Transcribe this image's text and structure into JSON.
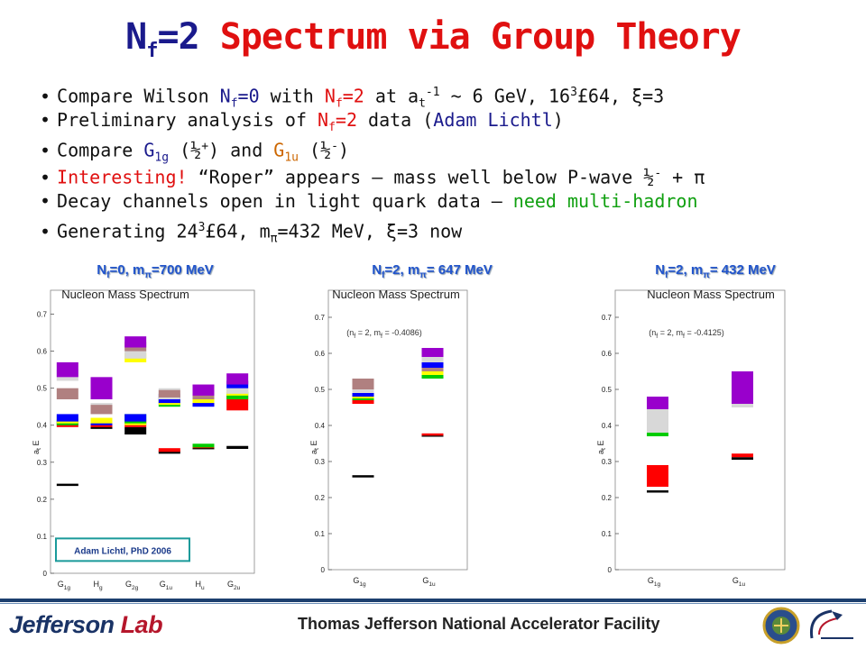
{
  "title": {
    "nf_main": "N",
    "nf_sub": "f",
    "nf_eq": "=2",
    "rest": " Spectrum via Group Theory"
  },
  "bullets": [
    {
      "parts": [
        {
          "t": "Compare Wilson "
        },
        {
          "t": "N",
          "c": "blue"
        },
        {
          "t": "f",
          "c": "blue",
          "s": "sub"
        },
        {
          "t": "=0",
          "c": "blue"
        },
        {
          "t": " with "
        },
        {
          "t": "N",
          "c": "red"
        },
        {
          "t": "f",
          "c": "red",
          "s": "sub"
        },
        {
          "t": "=2",
          "c": "red"
        },
        {
          "t": " at a"
        },
        {
          "t": "t",
          "s": "sub"
        },
        {
          "t": "-1",
          "s": "sup"
        },
        {
          "t": " ~ 6 GeV, 16"
        },
        {
          "t": "3",
          "s": "sup"
        },
        {
          "t": "£64, ξ=3"
        }
      ]
    },
    {
      "parts": [
        {
          "t": "Preliminary analysis of "
        },
        {
          "t": "N",
          "c": "red"
        },
        {
          "t": "f",
          "c": "red",
          "s": "sub"
        },
        {
          "t": "=2",
          "c": "red"
        },
        {
          "t": " data ("
        },
        {
          "t": "Adam Lichtl",
          "c": "blue"
        },
        {
          "t": ")"
        }
      ]
    },
    {
      "parts": [
        {
          "t": "Compare "
        },
        {
          "t": "G",
          "c": "blue"
        },
        {
          "t": "1g",
          "c": "blue",
          "s": "sub"
        },
        {
          "t": " (½"
        },
        {
          "t": "+",
          "s": "sup"
        },
        {
          "t": ")  and "
        },
        {
          "t": "G",
          "c": "orange"
        },
        {
          "t": "1u",
          "c": "orange",
          "s": "sub"
        },
        {
          "t": " (½"
        },
        {
          "t": "-",
          "s": "sup"
        },
        {
          "t": ")"
        }
      ]
    },
    {
      "parts": [
        {
          "t": "Interesting!",
          "c": "red"
        },
        {
          "t": " “Roper” appears – mass well below P-wave ½"
        },
        {
          "t": "-",
          "s": "sup"
        },
        {
          "t": " + π"
        }
      ]
    },
    {
      "parts": [
        {
          "t": "Decay channels open in light quark data – "
        },
        {
          "t": "need multi-hadron",
          "c": "green"
        }
      ]
    },
    {
      "parts": [
        {
          "t": "Generating 24"
        },
        {
          "t": "3",
          "s": "sup"
        },
        {
          "t": "£64, m"
        },
        {
          "t": "π",
          "s": "sub"
        },
        {
          "t": "=432 MeV, ξ=3 now"
        }
      ]
    }
  ],
  "chart_data": [
    {
      "type": "bar",
      "label": "N_f=0, m_π=700 MeV",
      "label_parts": {
        "a": "N",
        "b": "f",
        "c": "=0, m",
        "d": "π",
        "e": "=700 MeV"
      },
      "title": "Nucleon Mass Spectrum",
      "ylabel": "a_t E",
      "ylim": [
        0,
        0.75
      ],
      "yticks": [
        "0",
        "0.1",
        "0.2",
        "0.3",
        "0.4",
        "0.5",
        "0.6",
        "0.7"
      ],
      "categories": [
        {
          "base": "G",
          "sub": "1g"
        },
        {
          "base": "H",
          "sub": "g"
        },
        {
          "base": "G",
          "sub": "2g"
        },
        {
          "base": "G",
          "sub": "1u"
        },
        {
          "base": "H",
          "sub": "u"
        },
        {
          "base": "G",
          "sub": "2u"
        }
      ],
      "annotation": "Adam Lichtl, PhD 2006",
      "levels": [
        {
          "cat": 0,
          "y0": 0.236,
          "y1": 0.242,
          "color": "#000000"
        },
        {
          "cat": 0,
          "y0": 0.395,
          "y1": 0.41,
          "color": "#ff0000"
        },
        {
          "cat": 0,
          "y0": 0.4,
          "y1": 0.415,
          "color": "#00cc00"
        },
        {
          "cat": 0,
          "y0": 0.405,
          "y1": 0.425,
          "color": "#ffff00"
        },
        {
          "cat": 0,
          "y0": 0.41,
          "y1": 0.43,
          "color": "#0000ff"
        },
        {
          "cat": 0,
          "y0": 0.47,
          "y1": 0.5,
          "color": "#b08080"
        },
        {
          "cat": 0,
          "y0": 0.52,
          "y1": 0.55,
          "color": "#d8d8d8"
        },
        {
          "cat": 0,
          "y0": 0.53,
          "y1": 0.57,
          "color": "#9900cc"
        },
        {
          "cat": 1,
          "y0": 0.39,
          "y1": 0.4,
          "color": "#000000"
        },
        {
          "cat": 1,
          "y0": 0.395,
          "y1": 0.405,
          "color": "#ff0000"
        },
        {
          "cat": 1,
          "y0": 0.4,
          "y1": 0.415,
          "color": "#0000ff"
        },
        {
          "cat": 1,
          "y0": 0.405,
          "y1": 0.42,
          "color": "#ffff00"
        },
        {
          "cat": 1,
          "y0": 0.43,
          "y1": 0.46,
          "color": "#d8d8d8"
        },
        {
          "cat": 1,
          "y0": 0.43,
          "y1": 0.455,
          "color": "#b08080"
        },
        {
          "cat": 1,
          "y0": 0.47,
          "y1": 0.53,
          "color": "#9900cc"
        },
        {
          "cat": 2,
          "y0": 0.375,
          "y1": 0.395,
          "color": "#000000"
        },
        {
          "cat": 2,
          "y0": 0.395,
          "y1": 0.41,
          "color": "#ff0000"
        },
        {
          "cat": 2,
          "y0": 0.4,
          "y1": 0.415,
          "color": "#ffff00"
        },
        {
          "cat": 2,
          "y0": 0.405,
          "y1": 0.43,
          "color": "#00cc00"
        },
        {
          "cat": 2,
          "y0": 0.41,
          "y1": 0.43,
          "color": "#0000ff"
        },
        {
          "cat": 2,
          "y0": 0.57,
          "y1": 0.595,
          "color": "#ffff00"
        },
        {
          "cat": 2,
          "y0": 0.58,
          "y1": 0.61,
          "color": "#d8d8d8"
        },
        {
          "cat": 2,
          "y0": 0.6,
          "y1": 0.625,
          "color": "#b08080"
        },
        {
          "cat": 2,
          "y0": 0.61,
          "y1": 0.64,
          "color": "#9900cc"
        },
        {
          "cat": 3,
          "y0": 0.323,
          "y1": 0.332,
          "color": "#000000"
        },
        {
          "cat": 3,
          "y0": 0.328,
          "y1": 0.338,
          "color": "#ff0000"
        },
        {
          "cat": 3,
          "y0": 0.45,
          "y1": 0.47,
          "color": "#00cc00"
        },
        {
          "cat": 3,
          "y0": 0.455,
          "y1": 0.48,
          "color": "#ffff00"
        },
        {
          "cat": 3,
          "y0": 0.46,
          "y1": 0.485,
          "color": "#0000ff"
        },
        {
          "cat": 3,
          "y0": 0.47,
          "y1": 0.5,
          "color": "#d8d8d8"
        },
        {
          "cat": 3,
          "y0": 0.475,
          "y1": 0.495,
          "color": "#b08080"
        },
        {
          "cat": 4,
          "y0": 0.335,
          "y1": 0.343,
          "color": "#000000"
        },
        {
          "cat": 4,
          "y0": 0.338,
          "y1": 0.347,
          "color": "#ff0000"
        },
        {
          "cat": 4,
          "y0": 0.34,
          "y1": 0.35,
          "color": "#00cc00"
        },
        {
          "cat": 4,
          "y0": 0.45,
          "y1": 0.48,
          "color": "#0000ff"
        },
        {
          "cat": 4,
          "y0": 0.46,
          "y1": 0.485,
          "color": "#ffff00"
        },
        {
          "cat": 4,
          "y0": 0.47,
          "y1": 0.5,
          "color": "#b08080"
        },
        {
          "cat": 4,
          "y0": 0.48,
          "y1": 0.51,
          "color": "#9900cc"
        },
        {
          "cat": 5,
          "y0": 0.336,
          "y1": 0.344,
          "color": "#000000"
        },
        {
          "cat": 5,
          "y0": 0.44,
          "y1": 0.48,
          "color": "#ff0000"
        },
        {
          "cat": 5,
          "y0": 0.47,
          "y1": 0.49,
          "color": "#00cc00"
        },
        {
          "cat": 5,
          "y0": 0.48,
          "y1": 0.5,
          "color": "#ffff00"
        },
        {
          "cat": 5,
          "y0": 0.485,
          "y1": 0.51,
          "color": "#d8d8d8"
        },
        {
          "cat": 5,
          "y0": 0.5,
          "y1": 0.52,
          "color": "#0000ff"
        },
        {
          "cat": 5,
          "y0": 0.51,
          "y1": 0.54,
          "color": "#9900cc"
        }
      ]
    },
    {
      "type": "bar",
      "label": "N_f=2, m_π= 647 MeV",
      "label_parts": {
        "a": "N",
        "b": "f",
        "c": "=2, m",
        "d": "π",
        "e": "= 647 MeV"
      },
      "title": "Nucleon Mass Spectrum",
      "inset": "(n_f = 2, m_f = -0.4086)",
      "inset_parts": {
        "a": "(n",
        "b": "f",
        "c": " = 2, m",
        "d": "f",
        "e": " = -0.4086)"
      },
      "ylabel": "a_t E",
      "ylim": [
        0,
        0.75
      ],
      "yticks": [
        "0",
        "0.1",
        "0.2",
        "0.3",
        "0.4",
        "0.5",
        "0.6",
        "0.7"
      ],
      "categories": [
        {
          "base": "G",
          "sub": "1g"
        },
        {
          "base": "G",
          "sub": "1u"
        }
      ],
      "levels": [
        {
          "cat": 0,
          "y0": 0.257,
          "y1": 0.262,
          "color": "#000000"
        },
        {
          "cat": 0,
          "y0": 0.46,
          "y1": 0.475,
          "color": "#ff0000"
        },
        {
          "cat": 0,
          "y0": 0.47,
          "y1": 0.485,
          "color": "#00cc00"
        },
        {
          "cat": 0,
          "y0": 0.475,
          "y1": 0.49,
          "color": "#ffff00"
        },
        {
          "cat": 0,
          "y0": 0.48,
          "y1": 0.495,
          "color": "#0000ff"
        },
        {
          "cat": 0,
          "y0": 0.49,
          "y1": 0.51,
          "color": "#d8d8d8"
        },
        {
          "cat": 0,
          "y0": 0.5,
          "y1": 0.53,
          "color": "#b08080"
        },
        {
          "cat": 1,
          "y0": 0.37,
          "y1": 0.375,
          "color": "#000000"
        },
        {
          "cat": 1,
          "y0": 0.372,
          "y1": 0.378,
          "color": "#ff0000"
        },
        {
          "cat": 1,
          "y0": 0.53,
          "y1": 0.56,
          "color": "#00cc00"
        },
        {
          "cat": 1,
          "y0": 0.54,
          "y1": 0.57,
          "color": "#ffff00"
        },
        {
          "cat": 1,
          "y0": 0.55,
          "y1": 0.59,
          "color": "#b08080"
        },
        {
          "cat": 1,
          "y0": 0.56,
          "y1": 0.6,
          "color": "#d8d8d8"
        },
        {
          "cat": 1,
          "y0": 0.56,
          "y1": 0.575,
          "color": "#0000ff"
        },
        {
          "cat": 1,
          "y0": 0.59,
          "y1": 0.615,
          "color": "#9900cc"
        }
      ]
    },
    {
      "type": "bar",
      "label": "N_f=2, m_π= 432 MeV",
      "label_parts": {
        "a": "N",
        "b": "f",
        "c": "=2, m",
        "d": "π",
        "e": "= 432 MeV"
      },
      "title": "Nucleon Mass Spectrum",
      "inset": "(n_f = 2, m_f = -0.4125)",
      "inset_parts": {
        "a": "(n",
        "b": "f",
        "c": " = 2, m",
        "d": "f",
        "e": " = -0.4125)"
      },
      "ylabel": "a_t E",
      "ylim": [
        0,
        0.75
      ],
      "yticks": [
        "0",
        "0.1",
        "0.2",
        "0.3",
        "0.4",
        "0.5",
        "0.6",
        "0.7"
      ],
      "categories": [
        {
          "base": "G",
          "sub": "1g"
        },
        {
          "base": "G",
          "sub": "1u"
        }
      ],
      "levels": [
        {
          "cat": 0,
          "y0": 0.215,
          "y1": 0.22,
          "color": "#000000"
        },
        {
          "cat": 0,
          "y0": 0.23,
          "y1": 0.29,
          "color": "#ff0000"
        },
        {
          "cat": 0,
          "y0": 0.37,
          "y1": 0.4,
          "color": "#00cc00"
        },
        {
          "cat": 0,
          "y0": 0.38,
          "y1": 0.387,
          "color": "#0000ff"
        },
        {
          "cat": 0,
          "y0": 0.38,
          "y1": 0.45,
          "color": "#d8d8d8"
        },
        {
          "cat": 0,
          "y0": 0.445,
          "y1": 0.48,
          "color": "#9900cc"
        },
        {
          "cat": 1,
          "y0": 0.305,
          "y1": 0.312,
          "color": "#000000"
        },
        {
          "cat": 1,
          "y0": 0.312,
          "y1": 0.322,
          "color": "#ff0000"
        },
        {
          "cat": 1,
          "y0": 0.45,
          "y1": 0.47,
          "color": "#00cc00"
        },
        {
          "cat": 1,
          "y0": 0.45,
          "y1": 0.495,
          "color": "#d8d8d8"
        },
        {
          "cat": 1,
          "y0": 0.46,
          "y1": 0.5,
          "color": "#b08080"
        },
        {
          "cat": 1,
          "y0": 0.46,
          "y1": 0.55,
          "color": "#9900cc"
        }
      ]
    }
  ],
  "footer": {
    "logo_a": "Jefferson",
    "logo_b": " Lab",
    "facility": "Thomas Jefferson National Accelerator Facility",
    "colors": {
      "navy": "#1c3f6e",
      "accent_red": "#b5162b"
    }
  }
}
